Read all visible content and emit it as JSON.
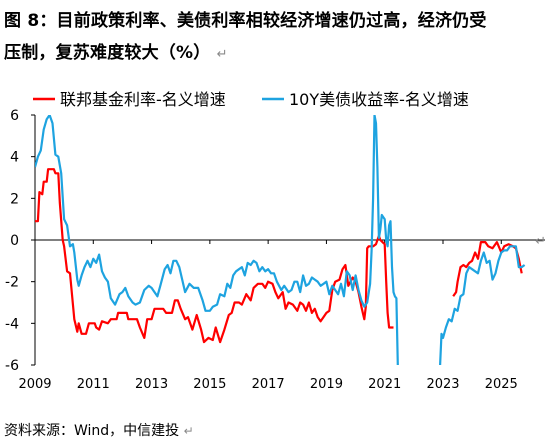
{
  "figure": {
    "title_line1": "图 8：目前政策利率、美债利率相较经济增速仍过高，经济仍受",
    "title_line2": "压制，复苏难度较大（%）",
    "return_mark": "↵",
    "source": "资料来源：Wind，中信建投"
  },
  "colors": {
    "red": "#ff0000",
    "blue": "#1ea3e0",
    "axis": "#000000"
  },
  "chart_data": {
    "type": "line",
    "title": "",
    "xlabel": "",
    "ylabel": "",
    "ylim": [
      -6,
      6
    ],
    "xlim": [
      2009,
      2026.5
    ],
    "y_ticks": [
      6,
      4,
      2,
      0,
      -2,
      -4,
      -6
    ],
    "x_ticks": [
      "2009",
      "2011",
      "2013",
      "2015",
      "2017",
      "2019",
      "2021",
      "2023",
      "2025"
    ],
    "x_tick_values": [
      2009,
      2011,
      2013,
      2015,
      2017,
      2019,
      2021,
      2023,
      2025
    ],
    "grid": false,
    "legend_position": "top",
    "series": [
      {
        "name": "联邦基金利率-名义增速",
        "color": "#ff0000",
        "points": [
          [
            2009.0,
            0.9
          ],
          [
            2009.1,
            0.9
          ],
          [
            2009.15,
            2.3
          ],
          [
            2009.25,
            2.2
          ],
          [
            2009.3,
            2.8
          ],
          [
            2009.4,
            2.8
          ],
          [
            2009.45,
            3.4
          ],
          [
            2009.65,
            3.4
          ],
          [
            2009.7,
            3.2
          ],
          [
            2009.8,
            3.2
          ],
          [
            2009.85,
            1.8
          ],
          [
            2009.95,
            0.0
          ],
          [
            2010.0,
            -0.3
          ],
          [
            2010.1,
            -1.5
          ],
          [
            2010.2,
            -1.6
          ],
          [
            2010.35,
            -3.8
          ],
          [
            2010.45,
            -4.4
          ],
          [
            2010.5,
            -4.0
          ],
          [
            2010.6,
            -4.5
          ],
          [
            2010.75,
            -4.5
          ],
          [
            2010.85,
            -4.0
          ],
          [
            2011.05,
            -4.0
          ],
          [
            2011.1,
            -4.2
          ],
          [
            2011.2,
            -4.3
          ],
          [
            2011.3,
            -3.9
          ],
          [
            2011.5,
            -4.0
          ],
          [
            2011.6,
            -3.8
          ],
          [
            2011.8,
            -3.8
          ],
          [
            2011.85,
            -3.5
          ],
          [
            2012.15,
            -3.5
          ],
          [
            2012.2,
            -3.8
          ],
          [
            2012.5,
            -3.8
          ],
          [
            2012.6,
            -4.2
          ],
          [
            2012.75,
            -4.7
          ],
          [
            2012.85,
            -3.8
          ],
          [
            2013.0,
            -3.8
          ],
          [
            2013.1,
            -3.3
          ],
          [
            2013.4,
            -3.3
          ],
          [
            2013.5,
            -3.5
          ],
          [
            2013.7,
            -3.5
          ],
          [
            2013.8,
            -2.9
          ],
          [
            2013.9,
            -2.9
          ],
          [
            2014.0,
            -3.3
          ],
          [
            2014.15,
            -3.8
          ],
          [
            2014.25,
            -3.7
          ],
          [
            2014.4,
            -4.3
          ],
          [
            2014.55,
            -3.6
          ],
          [
            2014.7,
            -4.3
          ],
          [
            2014.8,
            -4.9
          ],
          [
            2014.95,
            -4.7
          ],
          [
            2015.1,
            -4.8
          ],
          [
            2015.2,
            -4.2
          ],
          [
            2015.35,
            -4.9
          ],
          [
            2015.5,
            -4.3
          ],
          [
            2015.65,
            -3.6
          ],
          [
            2015.75,
            -3.5
          ],
          [
            2015.85,
            -3.0
          ],
          [
            2016.0,
            -3.0
          ],
          [
            2016.1,
            -3.1
          ],
          [
            2016.25,
            -2.6
          ],
          [
            2016.4,
            -2.9
          ],
          [
            2016.5,
            -2.3
          ],
          [
            2016.65,
            -2.1
          ],
          [
            2016.8,
            -2.1
          ],
          [
            2016.9,
            -2.3
          ],
          [
            2017.0,
            -2.0
          ],
          [
            2017.15,
            -2.1
          ],
          [
            2017.25,
            -2.5
          ],
          [
            2017.35,
            -2.8
          ],
          [
            2017.5,
            -2.5
          ],
          [
            2017.6,
            -3.3
          ],
          [
            2017.7,
            -3.0
          ],
          [
            2017.85,
            -3.1
          ],
          [
            2018.0,
            -3.4
          ],
          [
            2018.1,
            -3.0
          ],
          [
            2018.2,
            -3.1
          ],
          [
            2018.3,
            -3.4
          ],
          [
            2018.4,
            -3.0
          ],
          [
            2018.5,
            -3.5
          ],
          [
            2018.6,
            -3.3
          ],
          [
            2018.7,
            -3.7
          ],
          [
            2018.8,
            -3.9
          ],
          [
            2018.9,
            -3.7
          ],
          [
            2019.0,
            -3.5
          ],
          [
            2019.1,
            -3.4
          ],
          [
            2019.2,
            -2.4
          ],
          [
            2019.3,
            -2.0
          ],
          [
            2019.45,
            -1.9
          ],
          [
            2019.55,
            -1.4
          ],
          [
            2019.65,
            -1.2
          ],
          [
            2019.75,
            -2.2
          ],
          [
            2019.9,
            -1.8
          ],
          [
            2020.0,
            -2.0
          ],
          [
            2020.1,
            -2.5
          ],
          [
            2020.2,
            -3.2
          ],
          [
            2020.3,
            -3.8
          ],
          [
            2020.35,
            -3.2
          ],
          [
            2020.4,
            -0.4
          ],
          [
            2020.45,
            -0.3
          ],
          [
            2020.6,
            -0.3
          ],
          [
            2020.7,
            -0.2
          ],
          [
            2020.8,
            0.2
          ],
          [
            2020.85,
            0.0
          ],
          [
            2021.0,
            -0.2
          ],
          [
            2021.05,
            -2.0
          ],
          [
            2021.1,
            -3.5
          ],
          [
            2021.15,
            -4.2
          ],
          [
            2021.3,
            -4.2
          ]
        ],
        "points_b": [
          [
            2023.35,
            -2.7
          ],
          [
            2023.45,
            -2.5
          ],
          [
            2023.5,
            -2.0
          ],
          [
            2023.6,
            -1.3
          ],
          [
            2023.7,
            -1.2
          ],
          [
            2023.8,
            -1.3
          ],
          [
            2023.9,
            -1.1
          ],
          [
            2024.0,
            -1.0
          ],
          [
            2024.1,
            -0.6
          ],
          [
            2024.2,
            -0.9
          ],
          [
            2024.3,
            -0.1
          ],
          [
            2024.45,
            -0.1
          ],
          [
            2024.55,
            -0.3
          ],
          [
            2024.7,
            -0.4
          ],
          [
            2024.85,
            -0.1
          ],
          [
            2025.0,
            -0.6
          ],
          [
            2025.1,
            -0.3
          ],
          [
            2025.25,
            -0.2
          ],
          [
            2025.4,
            -0.3
          ],
          [
            2025.5,
            -0.4
          ],
          [
            2025.6,
            -0.9
          ],
          [
            2025.7,
            -1.6
          ]
        ]
      },
      {
        "name": "10Y美债收益率-名义增速",
        "color": "#1ea3e0",
        "points": [
          [
            2009.0,
            3.5
          ],
          [
            2009.1,
            4.0
          ],
          [
            2009.2,
            4.3
          ],
          [
            2009.3,
            5.3
          ],
          [
            2009.4,
            5.8
          ],
          [
            2009.5,
            6.0
          ],
          [
            2009.6,
            5.6
          ],
          [
            2009.7,
            4.1
          ],
          [
            2009.8,
            4.0
          ],
          [
            2009.9,
            3.2
          ],
          [
            2010.0,
            1.0
          ],
          [
            2010.1,
            0.7
          ],
          [
            2010.2,
            -0.3
          ],
          [
            2010.3,
            -0.2
          ],
          [
            2010.35,
            -0.6
          ],
          [
            2010.45,
            -1.9
          ],
          [
            2010.5,
            -2.2
          ],
          [
            2010.6,
            -1.7
          ],
          [
            2010.7,
            -1.3
          ],
          [
            2010.8,
            -1.0
          ],
          [
            2010.9,
            -1.3
          ],
          [
            2011.0,
            -0.9
          ],
          [
            2011.1,
            -1.1
          ],
          [
            2011.2,
            -0.7
          ],
          [
            2011.3,
            -1.5
          ],
          [
            2011.4,
            -1.8
          ],
          [
            2011.5,
            -2.0
          ],
          [
            2011.6,
            -2.8
          ],
          [
            2011.75,
            -3.1
          ],
          [
            2011.9,
            -2.6
          ],
          [
            2012.0,
            -2.5
          ],
          [
            2012.1,
            -2.3
          ],
          [
            2012.2,
            -2.7
          ],
          [
            2012.35,
            -3.0
          ],
          [
            2012.45,
            -3.1
          ],
          [
            2012.6,
            -3.0
          ],
          [
            2012.75,
            -2.4
          ],
          [
            2012.9,
            -2.2
          ],
          [
            2013.0,
            -2.3
          ],
          [
            2013.1,
            -2.5
          ],
          [
            2013.2,
            -2.7
          ],
          [
            2013.3,
            -2.2
          ],
          [
            2013.45,
            -1.4
          ],
          [
            2013.55,
            -1.2
          ],
          [
            2013.65,
            -1.6
          ],
          [
            2013.75,
            -1.0
          ],
          [
            2013.85,
            -1.0
          ],
          [
            2013.95,
            -1.3
          ],
          [
            2014.05,
            -1.9
          ],
          [
            2014.15,
            -2.5
          ],
          [
            2014.3,
            -2.1
          ],
          [
            2014.45,
            -2.3
          ],
          [
            2014.6,
            -2.3
          ],
          [
            2014.75,
            -2.9
          ],
          [
            2014.85,
            -3.4
          ],
          [
            2015.0,
            -3.4
          ],
          [
            2015.1,
            -3.2
          ],
          [
            2015.25,
            -3.1
          ],
          [
            2015.35,
            -2.6
          ],
          [
            2015.5,
            -2.7
          ],
          [
            2015.6,
            -2.1
          ],
          [
            2015.7,
            -2.3
          ],
          [
            2015.8,
            -1.7
          ],
          [
            2015.9,
            -1.5
          ],
          [
            2016.0,
            -1.4
          ],
          [
            2016.1,
            -1.3
          ],
          [
            2016.2,
            -1.7
          ],
          [
            2016.3,
            -1.1
          ],
          [
            2016.4,
            -1.2
          ],
          [
            2016.5,
            -1.0
          ],
          [
            2016.6,
            -1.1
          ],
          [
            2016.7,
            -1.5
          ],
          [
            2016.8,
            -1.3
          ],
          [
            2016.9,
            -1.5
          ],
          [
            2017.0,
            -1.4
          ],
          [
            2017.1,
            -1.6
          ],
          [
            2017.2,
            -1.6
          ],
          [
            2017.3,
            -2.0
          ],
          [
            2017.45,
            -2.4
          ],
          [
            2017.55,
            -2.2
          ],
          [
            2017.7,
            -2.5
          ],
          [
            2017.8,
            -2.4
          ],
          [
            2017.9,
            -2.0
          ],
          [
            2018.0,
            -2.0
          ],
          [
            2018.1,
            -2.5
          ],
          [
            2018.2,
            -1.7
          ],
          [
            2018.3,
            -2.2
          ],
          [
            2018.4,
            -2.1
          ],
          [
            2018.5,
            -1.8
          ],
          [
            2018.6,
            -1.9
          ],
          [
            2018.7,
            -2.0
          ],
          [
            2018.8,
            -2.2
          ],
          [
            2018.9,
            -2.1
          ],
          [
            2019.0,
            -2.0
          ],
          [
            2019.1,
            -2.6
          ],
          [
            2019.2,
            -2.2
          ],
          [
            2019.3,
            -2.4
          ],
          [
            2019.4,
            -2.6
          ],
          [
            2019.5,
            -2.1
          ],
          [
            2019.6,
            -2.7
          ],
          [
            2019.7,
            -1.5
          ],
          [
            2019.8,
            -1.7
          ],
          [
            2019.9,
            -2.4
          ],
          [
            2020.0,
            -1.7
          ],
          [
            2020.1,
            -2.4
          ],
          [
            2020.2,
            -2.9
          ],
          [
            2020.3,
            -3.2
          ],
          [
            2020.4,
            -3.0
          ],
          [
            2020.5,
            -2.1
          ],
          [
            2020.55,
            -0.5
          ],
          [
            2020.6,
            2.0
          ],
          [
            2020.65,
            6.0
          ],
          [
            2020.7,
            5.6
          ],
          [
            2020.75,
            3.5
          ],
          [
            2020.8,
            0.1
          ],
          [
            2020.85,
            0.5
          ],
          [
            2020.9,
            1.2
          ],
          [
            2021.0,
            1.0
          ],
          [
            2021.05,
            0.0
          ],
          [
            2021.1,
            -0.3
          ],
          [
            2021.15,
            0.7
          ],
          [
            2021.2,
            0.9
          ],
          [
            2021.25,
            -1.3
          ],
          [
            2021.3,
            -2.5
          ],
          [
            2021.35,
            -2.7
          ],
          [
            2021.4,
            -2.8
          ],
          [
            2021.45,
            -6.0
          ]
        ],
        "points_b": [
          [
            2022.9,
            -6.0
          ],
          [
            2022.95,
            -4.5
          ],
          [
            2023.0,
            -4.7
          ],
          [
            2023.1,
            -4.2
          ],
          [
            2023.2,
            -3.8
          ],
          [
            2023.3,
            -3.9
          ],
          [
            2023.4,
            -3.3
          ],
          [
            2023.5,
            -3.4
          ],
          [
            2023.6,
            -2.7
          ],
          [
            2023.7,
            -2.6
          ],
          [
            2023.8,
            -1.6
          ],
          [
            2023.9,
            -1.3
          ],
          [
            2024.0,
            -1.4
          ],
          [
            2024.1,
            -1.5
          ],
          [
            2024.2,
            -1.6
          ],
          [
            2024.3,
            -1.0
          ],
          [
            2024.4,
            -0.6
          ],
          [
            2024.5,
            -1.1
          ],
          [
            2024.6,
            -1.0
          ],
          [
            2024.7,
            -1.9
          ],
          [
            2024.8,
            -1.6
          ],
          [
            2024.9,
            -1.0
          ],
          [
            2025.0,
            -0.6
          ],
          [
            2025.1,
            -0.5
          ],
          [
            2025.2,
            -0.5
          ],
          [
            2025.3,
            -0.3
          ],
          [
            2025.4,
            -0.3
          ],
          [
            2025.5,
            -0.3
          ],
          [
            2025.6,
            -1.3
          ],
          [
            2025.7,
            -1.3
          ],
          [
            2025.8,
            -1.2
          ]
        ]
      }
    ]
  }
}
